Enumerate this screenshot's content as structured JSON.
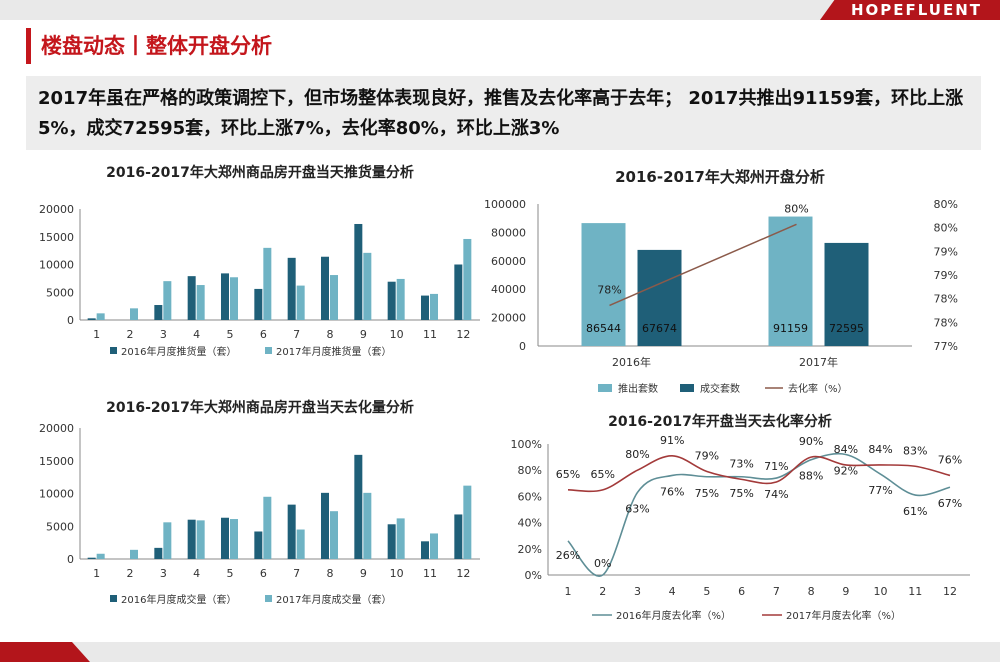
{
  "brand": {
    "name": "HOPEFLUENT"
  },
  "header": {
    "section_title": "楼盘动态丨整体开盘分析"
  },
  "summary": {
    "text": "2017年虽在严格的政策调控下，但市场整体表现良好，推售及去化率高于去年； 2017共推出91159套，环比上涨5%，成交72595套，环比上涨7%，去化率80%，环比上涨3%"
  },
  "colors": {
    "dark": "#1f5f78",
    "light": "#6fb3c4",
    "line_brown": "#8b5a4a",
    "line_red": "#a33a3a",
    "line_gray": "#5e8e96",
    "accent": "#c4161c"
  },
  "chart_data": [
    {
      "id": "supply",
      "type": "bar",
      "title": "2016-2017年大郑州商品房开盘当天推货量分析",
      "categories": [
        "1",
        "2",
        "3",
        "4",
        "5",
        "6",
        "7",
        "8",
        "9",
        "10",
        "11",
        "12"
      ],
      "series": [
        {
          "name": "2016年月度推货量（套）",
          "values": [
            300,
            0,
            2700,
            7900,
            8400,
            5600,
            11200,
            11400,
            17300,
            6900,
            4400,
            10000
          ]
        },
        {
          "name": "2017年月度推货量（套）",
          "values": [
            1200,
            2100,
            7000,
            6300,
            7700,
            13000,
            6200,
            8100,
            12100,
            7400,
            4700,
            14600
          ]
        }
      ],
      "ylim": [
        0,
        20000
      ],
      "yticks": [
        "0",
        "5000",
        "10000",
        "15000",
        "20000"
      ],
      "legend": "bottom"
    },
    {
      "id": "opening",
      "type": "bar",
      "title": "2016-2017年大郑州开盘分析",
      "categories": [
        "2016年",
        "2017年"
      ],
      "series": [
        {
          "name": "推出套数",
          "values": [
            86544,
            91159
          ],
          "labels": [
            "86544",
            "91159"
          ]
        },
        {
          "name": "成交套数",
          "values": [
            67674,
            72595
          ],
          "labels": [
            "67674",
            "72595"
          ]
        },
        {
          "name": "去化率（%）",
          "type": "line",
          "values": [
            78,
            80
          ],
          "labels": [
            "78%",
            "80%"
          ]
        }
      ],
      "ylim": [
        0,
        100000
      ],
      "yticks": [
        "0",
        "20000",
        "40000",
        "60000",
        "80000",
        "100000"
      ],
      "y2lim": [
        77,
        80.5
      ],
      "y2ticks": [
        "77%",
        "78%",
        "78%",
        "79%",
        "79%",
        "80%",
        "80%"
      ],
      "legend": "bottom"
    },
    {
      "id": "absorption",
      "type": "bar",
      "title": "2016-2017年大郑州商品房开盘当天去化量分析",
      "categories": [
        "1",
        "2",
        "3",
        "4",
        "5",
        "6",
        "7",
        "8",
        "9",
        "10",
        "11",
        "12"
      ],
      "series": [
        {
          "name": "2016年月度成交量（套）",
          "values": [
            200,
            0,
            1700,
            6000,
            6300,
            4200,
            8300,
            10100,
            15900,
            5300,
            2700,
            6800
          ]
        },
        {
          "name": "2017年月度成交量（套）",
          "values": [
            800,
            1400,
            5600,
            5900,
            6100,
            9500,
            4500,
            7300,
            10100,
            6200,
            3900,
            11200
          ]
        }
      ],
      "ylim": [
        0,
        20000
      ],
      "yticks": [
        "0",
        "5000",
        "10000",
        "15000",
        "20000"
      ],
      "legend": "bottom"
    },
    {
      "id": "rate",
      "type": "line",
      "title": "2016-2017年开盘当天去化率分析",
      "categories": [
        "1",
        "2",
        "3",
        "4",
        "5",
        "6",
        "7",
        "8",
        "9",
        "10",
        "11",
        "12"
      ],
      "series": [
        {
          "name": "2016年月度去化率（%）",
          "values": [
            26,
            0,
            63,
            76,
            75,
            75,
            74,
            88,
            92,
            77,
            61,
            67
          ],
          "labels": [
            "26%",
            "0%",
            "63%",
            "76%",
            "75%",
            "75%",
            "74%",
            "88%",
            "92%",
            "77%",
            "61%",
            "67%"
          ]
        },
        {
          "name": "2017年月度去化率（%）",
          "values": [
            65,
            65,
            80,
            91,
            79,
            73,
            71,
            90,
            84,
            84,
            83,
            76
          ],
          "labels": [
            "65%",
            "65%",
            "80%",
            "91%",
            "79%",
            "73%",
            "71%",
            "90%",
            "84%",
            "84%",
            "83%",
            "76%"
          ]
        }
      ],
      "ylim": [
        0,
        100
      ],
      "yticks": [
        "0%",
        "20%",
        "40%",
        "60%",
        "80%",
        "100%"
      ],
      "legend": "bottom"
    }
  ]
}
